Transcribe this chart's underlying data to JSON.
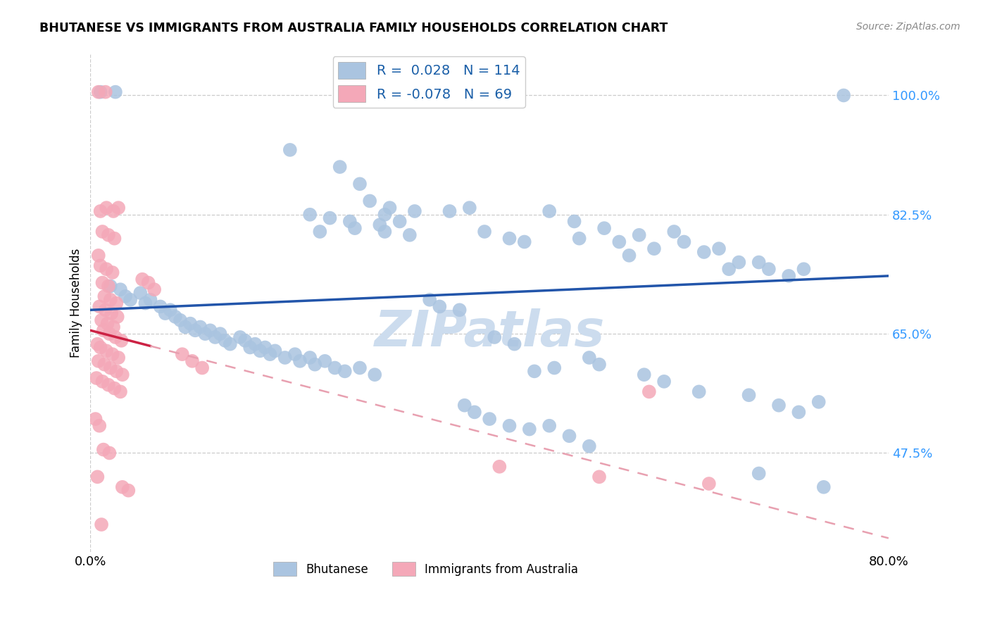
{
  "title": "BHUTANESE VS IMMIGRANTS FROM AUSTRALIA FAMILY HOUSEHOLDS CORRELATION CHART",
  "source": "Source: ZipAtlas.com",
  "ylabel": "Family Households",
  "yticks": [
    47.5,
    65.0,
    82.5,
    100.0
  ],
  "ytick_labels": [
    "47.5%",
    "65.0%",
    "82.5%",
    "100.0%"
  ],
  "xmin": 0.0,
  "xmax": 80.0,
  "ymin": 33.0,
  "ymax": 106.0,
  "legend_r_blue": "0.028",
  "legend_n_blue": "114",
  "legend_r_pink": "-0.078",
  "legend_n_pink": "69",
  "blue_color": "#aac4e0",
  "pink_color": "#f4a8b8",
  "trend_blue_color": "#2255aa",
  "trend_pink_solid_color": "#cc2244",
  "trend_pink_dashed_color": "#e8a0b0",
  "blue_trend_x0": 0.0,
  "blue_trend_y0": 68.5,
  "blue_trend_x1": 80.0,
  "blue_trend_y1": 73.5,
  "pink_trend_x0": 0.0,
  "pink_trend_y0": 65.5,
  "pink_trend_x1": 80.0,
  "pink_trend_y1": 35.0,
  "pink_solid_end_x": 6.0,
  "watermark": "ZIPatlas",
  "watermark_color": "#ccdcee",
  "blue_dots": [
    [
      1.0,
      100.5
    ],
    [
      2.5,
      100.5
    ],
    [
      20.0,
      92.0
    ],
    [
      25.0,
      89.5
    ],
    [
      27.0,
      87.0
    ],
    [
      28.0,
      84.5
    ],
    [
      30.0,
      83.5
    ],
    [
      32.5,
      83.0
    ],
    [
      29.5,
      82.5
    ],
    [
      22.0,
      82.5
    ],
    [
      24.0,
      82.0
    ],
    [
      26.0,
      81.5
    ],
    [
      29.0,
      81.0
    ],
    [
      31.0,
      81.5
    ],
    [
      23.0,
      80.0
    ],
    [
      26.5,
      80.5
    ],
    [
      29.5,
      80.0
    ],
    [
      32.0,
      79.5
    ],
    [
      36.0,
      83.0
    ],
    [
      38.0,
      83.5
    ],
    [
      39.5,
      80.0
    ],
    [
      42.0,
      79.0
    ],
    [
      43.5,
      78.5
    ],
    [
      46.0,
      83.0
    ],
    [
      48.5,
      81.5
    ],
    [
      49.0,
      79.0
    ],
    [
      51.5,
      80.5
    ],
    [
      53.0,
      78.5
    ],
    [
      54.0,
      76.5
    ],
    [
      55.0,
      79.5
    ],
    [
      56.5,
      77.5
    ],
    [
      58.5,
      80.0
    ],
    [
      59.5,
      78.5
    ],
    [
      61.5,
      77.0
    ],
    [
      63.0,
      77.5
    ],
    [
      64.0,
      74.5
    ],
    [
      65.0,
      75.5
    ],
    [
      67.0,
      75.5
    ],
    [
      68.0,
      74.5
    ],
    [
      70.0,
      73.5
    ],
    [
      71.5,
      74.5
    ],
    [
      2.0,
      72.0
    ],
    [
      3.0,
      71.5
    ],
    [
      3.5,
      70.5
    ],
    [
      4.0,
      70.0
    ],
    [
      5.0,
      71.0
    ],
    [
      5.5,
      69.5
    ],
    [
      6.0,
      70.0
    ],
    [
      7.0,
      69.0
    ],
    [
      7.5,
      68.0
    ],
    [
      8.0,
      68.5
    ],
    [
      8.5,
      67.5
    ],
    [
      9.0,
      67.0
    ],
    [
      9.5,
      66.0
    ],
    [
      10.0,
      66.5
    ],
    [
      10.5,
      65.5
    ],
    [
      11.0,
      66.0
    ],
    [
      11.5,
      65.0
    ],
    [
      12.0,
      65.5
    ],
    [
      12.5,
      64.5
    ],
    [
      13.0,
      65.0
    ],
    [
      13.5,
      64.0
    ],
    [
      14.0,
      63.5
    ],
    [
      15.0,
      64.5
    ],
    [
      15.5,
      64.0
    ],
    [
      16.0,
      63.0
    ],
    [
      16.5,
      63.5
    ],
    [
      17.0,
      62.5
    ],
    [
      17.5,
      63.0
    ],
    [
      18.0,
      62.0
    ],
    [
      18.5,
      62.5
    ],
    [
      19.5,
      61.5
    ],
    [
      20.5,
      62.0
    ],
    [
      21.0,
      61.0
    ],
    [
      22.0,
      61.5
    ],
    [
      22.5,
      60.5
    ],
    [
      23.5,
      61.0
    ],
    [
      24.5,
      60.0
    ],
    [
      25.5,
      59.5
    ],
    [
      27.0,
      60.0
    ],
    [
      28.5,
      59.0
    ],
    [
      34.0,
      70.0
    ],
    [
      35.0,
      69.0
    ],
    [
      37.0,
      68.5
    ],
    [
      40.5,
      64.5
    ],
    [
      42.5,
      63.5
    ],
    [
      44.5,
      59.5
    ],
    [
      46.5,
      60.0
    ],
    [
      50.0,
      61.5
    ],
    [
      51.0,
      60.5
    ],
    [
      55.5,
      59.0
    ],
    [
      57.5,
      58.0
    ],
    [
      61.0,
      56.5
    ],
    [
      66.0,
      56.0
    ],
    [
      69.0,
      54.5
    ],
    [
      71.0,
      53.5
    ],
    [
      73.0,
      55.0
    ],
    [
      37.5,
      54.5
    ],
    [
      38.5,
      53.5
    ],
    [
      40.0,
      52.5
    ],
    [
      42.0,
      51.5
    ],
    [
      44.0,
      51.0
    ],
    [
      46.0,
      51.5
    ],
    [
      48.0,
      50.0
    ],
    [
      50.0,
      48.5
    ],
    [
      67.0,
      44.5
    ],
    [
      73.5,
      42.5
    ],
    [
      75.5,
      100.0
    ]
  ],
  "pink_dots": [
    [
      0.8,
      100.5
    ],
    [
      1.5,
      100.5
    ],
    [
      1.0,
      83.0
    ],
    [
      1.6,
      83.5
    ],
    [
      2.3,
      83.0
    ],
    [
      2.8,
      83.5
    ],
    [
      1.2,
      80.0
    ],
    [
      1.8,
      79.5
    ],
    [
      2.4,
      79.0
    ],
    [
      0.8,
      76.5
    ],
    [
      1.0,
      75.0
    ],
    [
      1.6,
      74.5
    ],
    [
      2.2,
      74.0
    ],
    [
      1.2,
      72.5
    ],
    [
      1.8,
      72.0
    ],
    [
      1.4,
      70.5
    ],
    [
      2.0,
      70.0
    ],
    [
      2.6,
      69.5
    ],
    [
      0.9,
      69.0
    ],
    [
      1.5,
      68.5
    ],
    [
      2.1,
      68.0
    ],
    [
      2.7,
      67.5
    ],
    [
      1.1,
      67.0
    ],
    [
      1.7,
      66.5
    ],
    [
      2.3,
      66.0
    ],
    [
      1.3,
      65.5
    ],
    [
      1.9,
      65.0
    ],
    [
      2.5,
      64.5
    ],
    [
      3.1,
      64.0
    ],
    [
      0.7,
      63.5
    ],
    [
      1.0,
      63.0
    ],
    [
      1.6,
      62.5
    ],
    [
      2.2,
      62.0
    ],
    [
      2.8,
      61.5
    ],
    [
      0.8,
      61.0
    ],
    [
      1.4,
      60.5
    ],
    [
      2.0,
      60.0
    ],
    [
      2.6,
      59.5
    ],
    [
      3.2,
      59.0
    ],
    [
      0.6,
      58.5
    ],
    [
      1.2,
      58.0
    ],
    [
      1.8,
      57.5
    ],
    [
      2.4,
      57.0
    ],
    [
      3.0,
      56.5
    ],
    [
      5.2,
      73.0
    ],
    [
      5.8,
      72.5
    ],
    [
      6.4,
      71.5
    ],
    [
      9.2,
      62.0
    ],
    [
      10.2,
      61.0
    ],
    [
      11.2,
      60.0
    ],
    [
      0.5,
      52.5
    ],
    [
      0.9,
      51.5
    ],
    [
      1.3,
      48.0
    ],
    [
      1.9,
      47.5
    ],
    [
      0.7,
      44.0
    ],
    [
      3.2,
      42.5
    ],
    [
      3.8,
      42.0
    ],
    [
      1.1,
      37.0
    ],
    [
      41.0,
      45.5
    ],
    [
      51.0,
      44.0
    ],
    [
      62.0,
      43.0
    ],
    [
      56.0,
      56.5
    ]
  ]
}
